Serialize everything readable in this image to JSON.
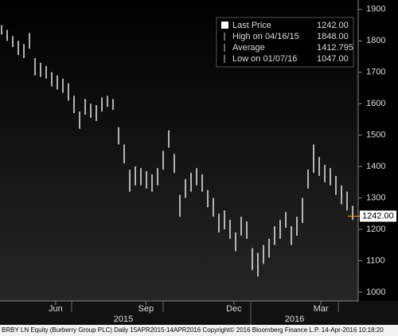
{
  "chart_data": {
    "type": "hilo",
    "categories": [
      null,
      null,
      null,
      null,
      null,
      null,
      null,
      null,
      null,
      null,
      null,
      null,
      null,
      null,
      null,
      null,
      null,
      null,
      null,
      null,
      null,
      null,
      null,
      null,
      null,
      null,
      null,
      null,
      null,
      null,
      null,
      null,
      null,
      null,
      null,
      null,
      null,
      null,
      null,
      null,
      null,
      null,
      null,
      null,
      null,
      null,
      null,
      null,
      null,
      null,
      null,
      null,
      null,
      null,
      null,
      null,
      null,
      null,
      null,
      null,
      null,
      null,
      null,
      null
    ],
    "series": [
      {
        "name": "High",
        "color": "#e8e8e8",
        "values": [
          1850,
          1835,
          1815,
          1800,
          1790,
          1825,
          1745,
          1730,
          1720,
          1700,
          1690,
          1680,
          1665,
          1625,
          1575,
          1615,
          1600,
          1595,
          1620,
          1625,
          1615,
          1525,
          1470,
          1390,
          1400,
          1395,
          1385,
          1375,
          1395,
          1450,
          1515,
          1440,
          1310,
          1360,
          1380,
          1395,
          1375,
          1325,
          1300,
          1250,
          1260,
          1230,
          1190,
          1240,
          1225,
          1140,
          1125,
          1150,
          1170,
          1210,
          1230,
          1255,
          1210,
          1240,
          1300,
          1390,
          1470,
          1430,
          1405,
          1395,
          1370,
          1340,
          1320,
          1275
        ]
      },
      {
        "name": "Low",
        "color": "#e8e8e8",
        "values": [
          1820,
          1800,
          1780,
          1755,
          1745,
          1775,
          1690,
          1685,
          1680,
          1655,
          1645,
          1635,
          1610,
          1570,
          1520,
          1565,
          1555,
          1545,
          1575,
          1590,
          1580,
          1470,
          1410,
          1320,
          1340,
          1340,
          1330,
          1320,
          1340,
          1390,
          1460,
          1380,
          1240,
          1300,
          1320,
          1340,
          1320,
          1270,
          1240,
          1190,
          1200,
          1170,
          1130,
          1180,
          1170,
          1070,
          1050,
          1090,
          1110,
          1150,
          1170,
          1205,
          1150,
          1180,
          1220,
          1330,
          1380,
          1370,
          1350,
          1340,
          1310,
          1280,
          1260,
          1230
        ]
      }
    ],
    "ylim": [
      972,
      1930
    ],
    "yticks": [
      1000,
      1100,
      1200,
      1300,
      1400,
      1500,
      1600,
      1700,
      1800,
      1900
    ],
    "xticks": [
      {
        "value": 9.7,
        "label": "Jun"
      },
      {
        "value": 25.9,
        "label": "Sep"
      },
      {
        "value": 41.7,
        "label": "Dec"
      },
      {
        "value": 57.3,
        "label": "Mar"
      }
    ],
    "x_groups": [
      "2015",
      "2016"
    ],
    "legend": [
      {
        "label": "Last Price",
        "value": 1242,
        "value_label": "1242.00"
      },
      {
        "label": "High on 04/16/15",
        "value": 1848,
        "value_label": "1848.00"
      },
      {
        "label": "Average",
        "value": 1412.795,
        "value_label": "1412.795"
      },
      {
        "label": "Low on 01/07/16",
        "value": 1047,
        "value_label": "1047.00"
      }
    ],
    "footer": "BRBY LN Equity (Burberry Group PLC)  Daily 15APR2015-14APR2016  Copyright© 2016 Bloomberg Finance L.P.   14-Apr-2016 10:18:20"
  }
}
